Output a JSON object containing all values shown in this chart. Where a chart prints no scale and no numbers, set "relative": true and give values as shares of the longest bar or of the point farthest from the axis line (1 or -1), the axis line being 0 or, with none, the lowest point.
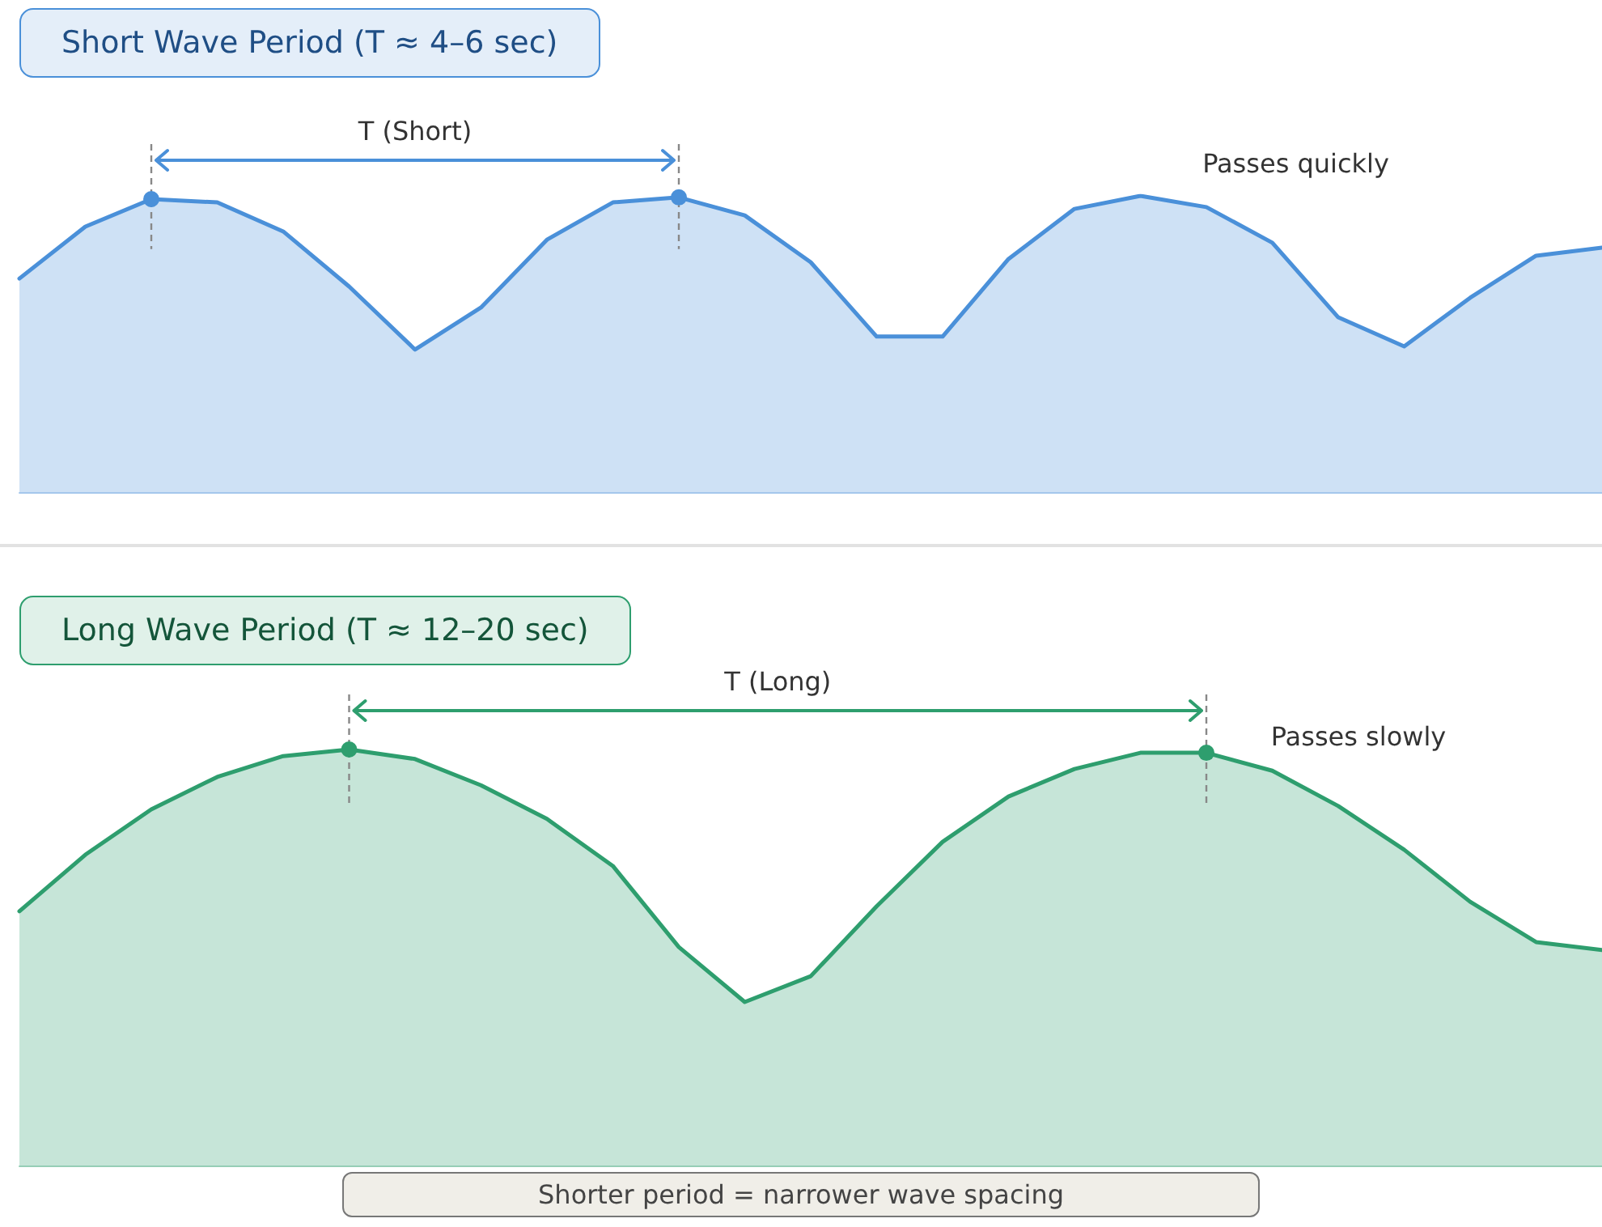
{
  "chart_data": [
    {
      "type": "area",
      "title": "Short Wave Period (T ≈ 4–6 sec)",
      "relative": true,
      "categories": [
        null,
        null,
        null,
        null,
        null,
        null,
        null,
        null,
        null,
        null,
        null,
        null,
        null,
        null,
        null,
        null,
        null,
        null,
        null,
        null,
        null,
        null,
        null,
        null,
        null
      ],
      "series": [
        {
          "color": "#4a90d9",
          "values": [
            0.721,
            0.896,
            0.989,
            0.978,
            0.88,
            0.694,
            0.481,
            0.623,
            0.852,
            0.978,
            0.995,
            0.934,
            0.776,
            0.525,
            0.525,
            0.787,
            0.956,
            1,
            0.962,
            0.842,
            0.59,
            0.492,
            0.656,
            0.798,
            0.825
          ]
        }
      ],
      "annotations": [
        "T (Short)",
        "Passes quickly"
      ]
    },
    {
      "type": "area",
      "title": "Long Wave Period (T ≈ 12–20 sec)",
      "relative": true,
      "categories": [
        null,
        null,
        null,
        null,
        null,
        null,
        null,
        null,
        null,
        null,
        null,
        null,
        null,
        null,
        null,
        null,
        null,
        null,
        null,
        null,
        null,
        null,
        null,
        null,
        null
      ],
      "series": [
        {
          "color": "#2e9e6e",
          "values": [
            0.611,
            0.747,
            0.856,
            0.934,
            0.984,
            1,
            0.977,
            0.914,
            0.833,
            0.72,
            0.525,
            0.393,
            0.455,
            0.623,
            0.778,
            0.887,
            0.953,
            0.992,
            0.992,
            0.949,
            0.864,
            0.759,
            0.634,
            0.537,
            0.518
          ]
        }
      ],
      "annotations": [
        "T (Long)",
        "Passes slowly",
        "Shorter period = narrower wave spacing"
      ]
    }
  ]
}
